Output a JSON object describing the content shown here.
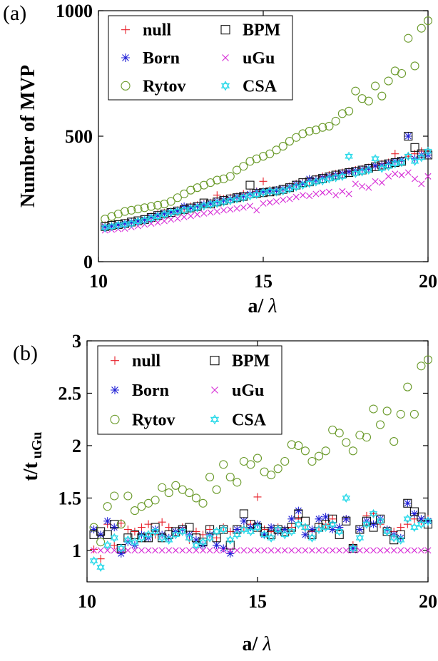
{
  "chart_data": [
    {
      "panel_label": "(a)",
      "type": "scatter",
      "xlabel": "a/ λ",
      "ylabel": "Number of MVP",
      "xlim": [
        10,
        20
      ],
      "ylim": [
        0,
        1000
      ],
      "xticks": [
        "10",
        "15",
        "20"
      ],
      "yticks": [
        "0",
        "500",
        "1000"
      ],
      "grid": false,
      "legend_position": "top-left",
      "x": [
        10.2,
        10.4,
        10.6,
        10.8,
        11.0,
        11.2,
        11.4,
        11.6,
        11.8,
        12.0,
        12.2,
        12.4,
        12.6,
        12.8,
        13.0,
        13.2,
        13.4,
        13.6,
        13.8,
        14.0,
        14.2,
        14.4,
        14.6,
        14.8,
        15.0,
        15.2,
        15.4,
        15.6,
        15.8,
        16.0,
        16.2,
        16.4,
        16.6,
        16.8,
        17.0,
        17.2,
        17.4,
        17.6,
        17.8,
        18.0,
        18.2,
        18.4,
        18.6,
        18.8,
        19.0,
        19.2,
        19.4,
        19.6,
        19.8,
        20.0
      ],
      "series": [
        {
          "name": "null",
          "marker": "plus",
          "color": "#e8202a",
          "values": [
            145,
            148,
            150,
            155,
            160,
            165,
            170,
            180,
            190,
            195,
            200,
            205,
            210,
            220,
            225,
            230,
            235,
            265,
            250,
            255,
            260,
            270,
            275,
            280,
            320,
            285,
            280,
            290,
            300,
            310,
            315,
            320,
            330,
            340,
            345,
            350,
            355,
            360,
            365,
            370,
            375,
            380,
            390,
            395,
            430,
            400,
            420,
            430,
            440,
            440
          ]
        },
        {
          "name": "Born",
          "marker": "asterisk",
          "color": "#1f1fd6",
          "values": [
            140,
            142,
            148,
            153,
            158,
            162,
            168,
            178,
            185,
            192,
            198,
            203,
            220,
            215,
            222,
            228,
            233,
            240,
            245,
            250,
            258,
            262,
            270,
            278,
            280,
            282,
            285,
            290,
            298,
            308,
            312,
            330,
            325,
            335,
            340,
            345,
            352,
            358,
            362,
            368,
            372,
            382,
            385,
            392,
            400,
            405,
            500,
            410,
            425,
            425
          ]
        },
        {
          "name": "Rytov",
          "marker": "circle",
          "color": "#6a9a2a",
          "values": [
            170,
            180,
            190,
            200,
            205,
            210,
            215,
            220,
            225,
            230,
            240,
            255,
            270,
            285,
            295,
            305,
            315,
            325,
            330,
            340,
            365,
            380,
            400,
            410,
            420,
            430,
            445,
            460,
            480,
            495,
            510,
            520,
            525,
            535,
            540,
            560,
            590,
            600,
            680,
            650,
            640,
            700,
            660,
            720,
            760,
            750,
            890,
            780,
            930,
            960
          ]
        },
        {
          "name": "BPM",
          "marker": "square",
          "color": "#111111",
          "values": [
            140,
            145,
            148,
            152,
            158,
            163,
            168,
            176,
            184,
            190,
            196,
            202,
            208,
            214,
            220,
            234,
            230,
            238,
            244,
            250,
            255,
            260,
            305,
            272,
            275,
            278,
            282,
            288,
            295,
            305,
            315,
            318,
            326,
            332,
            338,
            345,
            350,
            355,
            360,
            365,
            372,
            378,
            385,
            390,
            395,
            400,
            500,
            455,
            430,
            425
          ]
        },
        {
          "name": "uGu",
          "marker": "x",
          "color": "#d62ad6",
          "values": [
            125,
            128,
            130,
            132,
            138,
            142,
            148,
            152,
            156,
            162,
            168,
            172,
            178,
            182,
            188,
            192,
            196,
            200,
            205,
            208,
            212,
            216,
            222,
            205,
            232,
            236,
            240,
            246,
            250,
            258,
            265,
            262,
            270,
            275,
            278,
            265,
            280,
            270,
            310,
            300,
            295,
            320,
            315,
            340,
            350,
            345,
            355,
            330,
            310,
            340
          ]
        },
        {
          "name": "CSA",
          "marker": "star",
          "color": "#22d8e8",
          "values": [
            135,
            140,
            145,
            148,
            152,
            160,
            165,
            172,
            180,
            188,
            195,
            200,
            205,
            210,
            215,
            222,
            228,
            232,
            238,
            243,
            250,
            255,
            262,
            268,
            275,
            280,
            278,
            282,
            290,
            298,
            305,
            312,
            318,
            322,
            330,
            335,
            340,
            420,
            352,
            358,
            365,
            410,
            372,
            380,
            390,
            395,
            420,
            400,
            415,
            440
          ]
        }
      ]
    },
    {
      "panel_label": "(b)",
      "type": "scatter",
      "xlabel": "a/ λ",
      "ylabel_main": "t/t",
      "ylabel_sub": "uGu",
      "xlim": [
        10,
        20
      ],
      "ylim": [
        0.7,
        3
      ],
      "xticks": [
        "10",
        "15",
        "20"
      ],
      "yticks": [
        "1",
        "1.5",
        "2",
        "2.5",
        "3"
      ],
      "grid": false,
      "legend_position": "top-left",
      "x": [
        10.2,
        10.4,
        10.6,
        10.8,
        11.0,
        11.2,
        11.4,
        11.6,
        11.8,
        12.0,
        12.2,
        12.4,
        12.6,
        12.8,
        13.0,
        13.2,
        13.4,
        13.6,
        13.8,
        14.0,
        14.2,
        14.4,
        14.6,
        14.8,
        15.0,
        15.2,
        15.4,
        15.6,
        15.8,
        16.0,
        16.2,
        16.4,
        16.6,
        16.8,
        17.0,
        17.2,
        17.4,
        17.6,
        17.8,
        18.0,
        18.2,
        18.4,
        18.6,
        18.8,
        19.0,
        19.2,
        19.4,
        19.6,
        19.8,
        20.0
      ],
      "series": [
        {
          "name": "null",
          "marker": "plus",
          "color": "#e8202a",
          "values": [
            1.01,
            0.92,
            1.25,
            1.05,
            1.26,
            1.2,
            1.18,
            1.22,
            1.25,
            1.15,
            1.27,
            1.22,
            1.18,
            1.22,
            1.1,
            1.18,
            1.15,
            1.2,
            1.12,
            1.22,
            1.18,
            1.2,
            1.22,
            1.25,
            1.51,
            1.2,
            1.18,
            1.22,
            1.2,
            1.22,
            1.3,
            1.2,
            1.18,
            1.22,
            1.25,
            1.3,
            1.22,
            1.3,
            1.05,
            1.2,
            1.33,
            1.35,
            1.25,
            1.2,
            1.18,
            1.22,
            1.25,
            1.3,
            1.28,
            1.3
          ]
        },
        {
          "name": "Born",
          "marker": "asterisk",
          "color": "#1f1fd6",
          "values": [
            1.2,
            1.15,
            1.28,
            1.22,
            0.97,
            1.08,
            1.05,
            1.15,
            1.12,
            1.2,
            1.15,
            1.12,
            1.18,
            1.2,
            1.15,
            1.1,
            1.05,
            1.15,
            1.05,
            1.02,
            0.97,
            1.2,
            1.28,
            1.22,
            1.25,
            1.15,
            1.22,
            1.18,
            1.2,
            1.3,
            1.38,
            1.15,
            1.2,
            1.3,
            1.32,
            1.2,
            1.22,
            1.3,
            1.02,
            1.2,
            1.28,
            1.25,
            1.3,
            1.2,
            1.15,
            1.12,
            1.45,
            1.35,
            1.3,
            1.28
          ]
        },
        {
          "name": "Rytov",
          "marker": "circle",
          "color": "#6a9a2a",
          "values": [
            1.22,
            1.08,
            1.42,
            1.52,
            1.25,
            1.52,
            1.38,
            1.42,
            1.45,
            1.48,
            1.6,
            1.55,
            1.62,
            1.58,
            1.55,
            1.5,
            1.45,
            1.7,
            1.58,
            1.82,
            1.7,
            1.65,
            1.85,
            1.82,
            1.88,
            1.75,
            1.72,
            1.78,
            1.85,
            2.01,
            2.0,
            1.95,
            1.85,
            1.9,
            1.95,
            2.15,
            2.12,
            2.03,
            1.95,
            2.1,
            2.08,
            2.35,
            2.2,
            2.33,
            2.04,
            2.3,
            2.56,
            2.3,
            2.76,
            2.82
          ]
        },
        {
          "name": "BPM",
          "marker": "square",
          "color": "#111111",
          "values": [
            1.15,
            1.18,
            1.15,
            1.25,
            1.02,
            1.12,
            1.15,
            1.12,
            1.12,
            1.22,
            1.12,
            1.15,
            1.18,
            1.2,
            1.22,
            1.12,
            1.08,
            1.2,
            1.12,
            1.2,
            1.05,
            1.2,
            1.35,
            1.25,
            1.22,
            1.18,
            1.15,
            1.2,
            1.18,
            1.22,
            1.35,
            1.28,
            1.15,
            1.22,
            1.25,
            1.3,
            1.15,
            1.28,
            1.02,
            1.2,
            1.28,
            1.22,
            1.3,
            1.18,
            1.1,
            1.15,
            1.45,
            1.37,
            1.32,
            1.25
          ]
        },
        {
          "name": "uGu",
          "marker": "x",
          "color": "#d62ad6",
          "values": [
            1,
            1,
            1,
            1,
            1,
            1,
            1,
            1,
            1,
            1,
            1,
            1,
            1,
            1,
            1,
            1,
            1,
            1,
            1,
            1,
            1,
            1,
            1,
            1,
            1,
            1,
            1,
            1,
            1,
            1,
            1,
            1,
            1,
            1,
            1,
            1,
            1,
            1,
            1,
            1,
            1,
            1,
            1,
            1,
            1,
            1,
            1,
            1,
            1,
            1
          ]
        },
        {
          "name": "CSA",
          "marker": "star",
          "color": "#22d8e8",
          "values": [
            0.9,
            0.84,
            1.05,
            1.12,
            1.02,
            1.1,
            1.08,
            1.12,
            1.15,
            1.18,
            1.12,
            1.1,
            1.15,
            1.18,
            1.12,
            1.05,
            1.08,
            1.12,
            1.18,
            1.2,
            1.1,
            1.15,
            1.2,
            1.18,
            1.22,
            1.15,
            1.12,
            1.2,
            1.15,
            1.18,
            1.25,
            1.22,
            1.12,
            1.2,
            1.22,
            1.25,
            1.18,
            1.5,
            1.02,
            1.12,
            1.25,
            1.35,
            1.28,
            1.18,
            1.12,
            1.1,
            1.3,
            1.22,
            1.25,
            1.28
          ]
        }
      ]
    }
  ]
}
